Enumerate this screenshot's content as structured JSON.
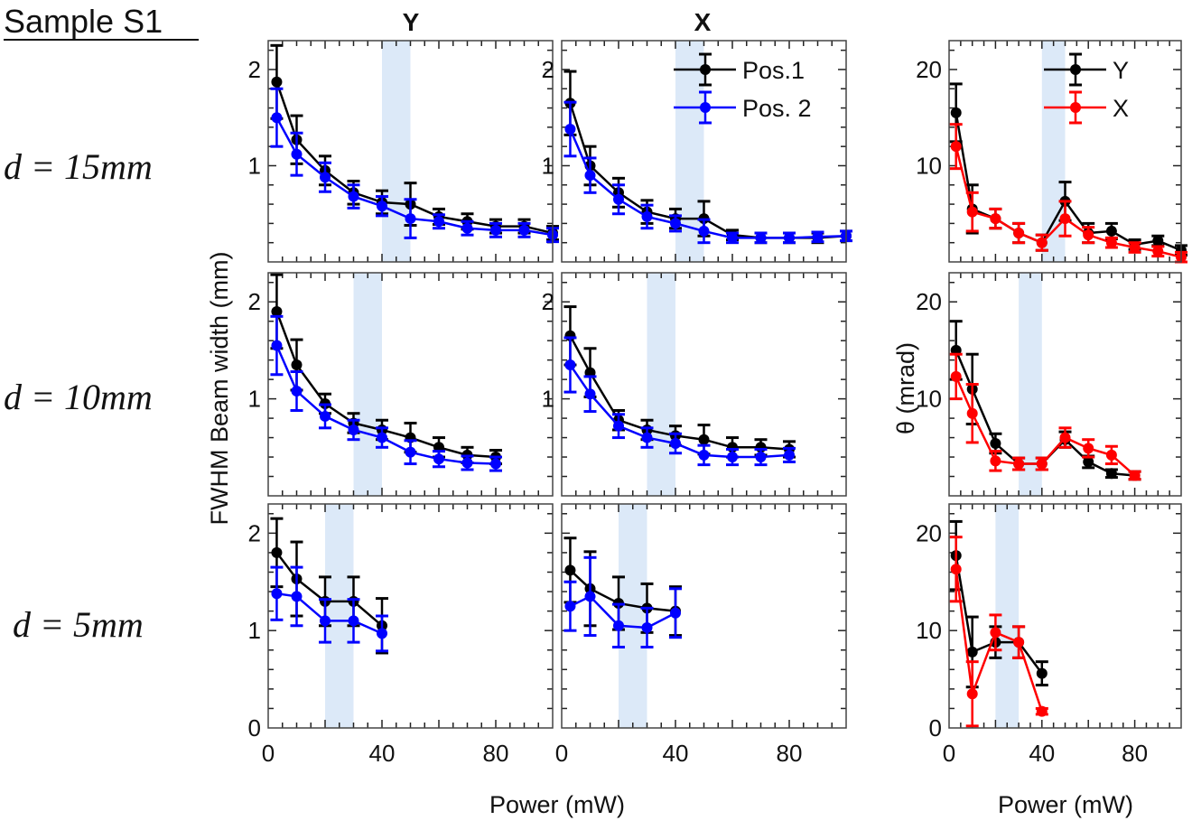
{
  "figure": {
    "sample_label": "Sample S1",
    "column_titles": [
      "Y",
      "X"
    ],
    "row_labels": [
      "d = 15mm",
      "d = 10mm",
      "d = 5mm"
    ],
    "ylabel_width": "FWHM Beam width (mm)",
    "ylabel_theta": "θ (mrad)",
    "xlabel": "Power (mW)",
    "colors": {
      "pos1": "#000000",
      "pos2": "#0000ff",
      "thetaY": "#000000",
      "thetaX": "#ff0000",
      "shade": "#dce9f8"
    }
  },
  "chart_data": [
    {
      "type": "line",
      "panel": "d=15mm, Y",
      "xlim": [
        0,
        100
      ],
      "ylim": [
        0,
        2.3
      ],
      "yticks": [
        1,
        2
      ],
      "shaded_range": [
        40,
        50
      ],
      "x": [
        3,
        10,
        20,
        30,
        40,
        50,
        60,
        70,
        80,
        90,
        100
      ],
      "series": [
        {
          "name": "Pos.1",
          "values": [
            1.87,
            1.27,
            0.95,
            0.72,
            0.62,
            0.6,
            0.47,
            0.42,
            0.37,
            0.37,
            0.3
          ],
          "err": [
            0.38,
            0.25,
            0.15,
            0.12,
            0.12,
            0.22,
            0.08,
            0.08,
            0.07,
            0.07,
            0.07
          ]
        },
        {
          "name": "Pos. 2",
          "values": [
            1.5,
            1.12,
            0.88,
            0.68,
            0.58,
            0.45,
            0.42,
            0.35,
            0.33,
            0.33,
            0.28
          ],
          "err": [
            0.3,
            0.22,
            0.15,
            0.12,
            0.1,
            0.2,
            0.07,
            0.07,
            0.07,
            0.07,
            0.07
          ]
        }
      ]
    },
    {
      "type": "line",
      "panel": "d=15mm, X",
      "xlim": [
        0,
        100
      ],
      "ylim": [
        0,
        2.3
      ],
      "yticks": [
        1,
        2
      ],
      "shaded_range": [
        40,
        50
      ],
      "legend": "top-right",
      "x": [
        3,
        10,
        20,
        30,
        40,
        50,
        60,
        70,
        80,
        90,
        100
      ],
      "series": [
        {
          "name": "Pos.1",
          "values": [
            1.65,
            1.0,
            0.72,
            0.52,
            0.45,
            0.45,
            0.28,
            0.25,
            0.25,
            0.25,
            0.27
          ],
          "err": [
            0.33,
            0.2,
            0.15,
            0.12,
            0.1,
            0.18,
            0.05,
            0.05,
            0.05,
            0.05,
            0.05
          ]
        },
        {
          "name": "Pos. 2",
          "values": [
            1.38,
            0.9,
            0.65,
            0.47,
            0.4,
            0.32,
            0.25,
            0.25,
            0.25,
            0.26,
            0.27
          ],
          "err": [
            0.28,
            0.18,
            0.15,
            0.12,
            0.08,
            0.12,
            0.05,
            0.05,
            0.05,
            0.05,
            0.05
          ]
        }
      ]
    },
    {
      "type": "line",
      "panel": "d=15mm, theta",
      "xlim": [
        0,
        100
      ],
      "ylim": [
        0,
        23
      ],
      "yticks": [
        10,
        20
      ],
      "shaded_range": [
        40,
        50
      ],
      "legend": "top-right",
      "x": [
        3,
        10,
        20,
        30,
        40,
        50,
        60,
        70,
        80,
        90,
        100
      ],
      "series": [
        {
          "name": "Y",
          "values": [
            15.5,
            5.5,
            4.5,
            3.0,
            2.0,
            6.3,
            3.0,
            3.2,
            1.8,
            2.2,
            1.2
          ],
          "err": [
            3.0,
            2.5,
            1.0,
            1.0,
            0.8,
            2.0,
            1.0,
            0.8,
            0.5,
            0.5,
            0.5
          ]
        },
        {
          "name": "X",
          "values": [
            12.0,
            5.2,
            4.5,
            3.0,
            2.0,
            4.5,
            2.8,
            2.0,
            1.5,
            1.1,
            0.5
          ],
          "err": [
            2.3,
            2.0,
            1.0,
            1.0,
            0.8,
            1.8,
            0.8,
            0.5,
            0.5,
            0.5,
            0.5
          ]
        }
      ]
    },
    {
      "type": "line",
      "panel": "d=10mm, Y",
      "xlim": [
        0,
        100
      ],
      "ylim": [
        0,
        2.3
      ],
      "yticks": [
        1,
        2
      ],
      "shaded_range": [
        30,
        40
      ],
      "x": [
        3,
        10,
        20,
        30,
        40,
        50,
        60,
        70,
        80
      ],
      "series": [
        {
          "name": "Pos.1",
          "values": [
            1.9,
            1.35,
            0.95,
            0.75,
            0.68,
            0.6,
            0.5,
            0.42,
            0.4
          ],
          "err": [
            0.38,
            0.26,
            0.1,
            0.1,
            0.1,
            0.15,
            0.1,
            0.08,
            0.07
          ]
        },
        {
          "name": "Pos. 2",
          "values": [
            1.55,
            1.08,
            0.82,
            0.68,
            0.6,
            0.45,
            0.38,
            0.34,
            0.33
          ],
          "err": [
            0.3,
            0.2,
            0.12,
            0.1,
            0.1,
            0.12,
            0.08,
            0.07,
            0.07
          ]
        }
      ]
    },
    {
      "type": "line",
      "panel": "d=10mm, X",
      "xlim": [
        0,
        100
      ],
      "ylim": [
        0,
        2.3
      ],
      "yticks": [
        1,
        2
      ],
      "shaded_range": [
        30,
        40
      ],
      "x": [
        3,
        10,
        20,
        30,
        40,
        50,
        60,
        70,
        80
      ],
      "series": [
        {
          "name": "Pos.1",
          "values": [
            1.65,
            1.27,
            0.78,
            0.68,
            0.62,
            0.58,
            0.5,
            0.5,
            0.48
          ],
          "err": [
            0.3,
            0.25,
            0.1,
            0.1,
            0.1,
            0.15,
            0.1,
            0.08,
            0.08
          ]
        },
        {
          "name": "Pos. 2",
          "values": [
            1.35,
            1.05,
            0.72,
            0.6,
            0.54,
            0.42,
            0.4,
            0.4,
            0.42
          ],
          "err": [
            0.28,
            0.18,
            0.12,
            0.1,
            0.1,
            0.1,
            0.08,
            0.08,
            0.07
          ]
        }
      ]
    },
    {
      "type": "line",
      "panel": "d=10mm, theta",
      "xlim": [
        0,
        100
      ],
      "ylim": [
        0,
        23
      ],
      "yticks": [
        10,
        20
      ],
      "shaded_range": [
        30,
        40
      ],
      "x": [
        3,
        10,
        20,
        30,
        40,
        50,
        60,
        70,
        80
      ],
      "series": [
        {
          "name": "Y",
          "values": [
            15.0,
            11.0,
            5.4,
            3.3,
            3.3,
            5.8,
            3.5,
            2.3,
            2.1
          ],
          "err": [
            3.0,
            3.6,
            1.0,
            0.6,
            0.6,
            0.8,
            0.6,
            0.4,
            0.4
          ]
        },
        {
          "name": "X",
          "values": [
            12.3,
            8.5,
            3.6,
            3.3,
            3.3,
            6.0,
            4.9,
            4.2,
            2.1
          ],
          "err": [
            2.3,
            3.0,
            1.0,
            0.6,
            0.6,
            1.0,
            0.9,
            0.9,
            0.4
          ]
        }
      ]
    },
    {
      "type": "line",
      "panel": "d=5mm, Y",
      "xlim": [
        0,
        100
      ],
      "ylim": [
        0,
        2.3
      ],
      "yticks": [
        0,
        1,
        2
      ],
      "xticks": [
        0,
        40,
        80
      ],
      "shaded_range": [
        20,
        30
      ],
      "x": [
        3,
        10,
        20,
        30,
        40
      ],
      "series": [
        {
          "name": "Pos.1",
          "values": [
            1.8,
            1.53,
            1.3,
            1.3,
            1.05
          ],
          "err": [
            0.35,
            0.38,
            0.25,
            0.25,
            0.28
          ]
        },
        {
          "name": "Pos. 2",
          "values": [
            1.38,
            1.35,
            1.1,
            1.1,
            0.97
          ],
          "err": [
            0.27,
            0.3,
            0.22,
            0.22,
            0.18
          ]
        }
      ]
    },
    {
      "type": "line",
      "panel": "d=5mm, X",
      "xlim": [
        0,
        100
      ],
      "ylim": [
        0,
        2.3
      ],
      "yticks": [],
      "xticks": [
        0,
        40,
        80
      ],
      "shaded_range": [
        20,
        30
      ],
      "x": [
        3,
        10,
        20,
        30,
        40
      ],
      "series": [
        {
          "name": "Pos.1",
          "values": [
            1.62,
            1.43,
            1.28,
            1.23,
            1.2
          ],
          "err": [
            0.33,
            0.38,
            0.27,
            0.25,
            0.25
          ]
        },
        {
          "name": "Pos. 2",
          "values": [
            1.25,
            1.35,
            1.05,
            1.03,
            1.18
          ],
          "err": [
            0.25,
            0.4,
            0.22,
            0.2,
            0.25
          ]
        }
      ]
    },
    {
      "type": "line",
      "panel": "d=5mm, theta",
      "xlim": [
        0,
        100
      ],
      "ylim": [
        0,
        23
      ],
      "yticks": [
        0,
        10,
        20
      ],
      "xticks": [
        0,
        40,
        80
      ],
      "shaded_range": [
        20,
        30
      ],
      "x": [
        3,
        10,
        20,
        30,
        40
      ],
      "series": [
        {
          "name": "Y",
          "values": [
            17.7,
            7.8,
            8.8,
            8.8,
            5.6
          ],
          "err": [
            3.5,
            3.6,
            1.6,
            1.6,
            1.2
          ]
        },
        {
          "name": "X",
          "values": [
            16.3,
            3.5,
            9.8,
            8.8,
            1.7
          ],
          "err": [
            3.3,
            3.3,
            1.8,
            1.6,
            0.3
          ]
        }
      ]
    }
  ]
}
